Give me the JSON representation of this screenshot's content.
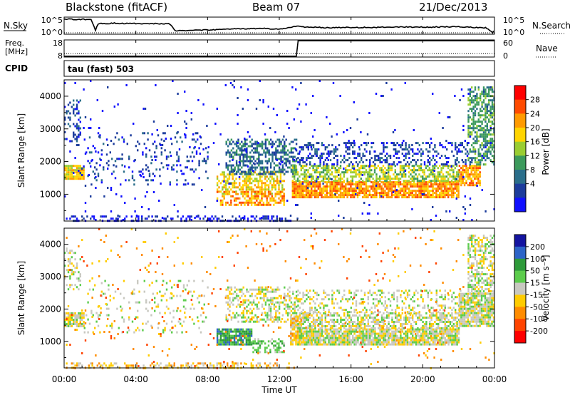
{
  "header": {
    "station": "Blackstone (fitACF)",
    "beam": "Beam 07",
    "date": "21/Dec/2013"
  },
  "noise_panel": {
    "left_label": "N.Sky",
    "left_ticks": [
      "10^5",
      "10^0"
    ],
    "right_ticks": [
      "10^5",
      "10^0"
    ],
    "right_label": "N.Search"
  },
  "freq_panel": {
    "left_label_1": "Freq.",
    "left_label_2": "[MHz]",
    "left_ticks": [
      "18",
      "8"
    ],
    "right_ticks": [
      "60",
      "0"
    ],
    "right_label": "Nave",
    "cpid_label": "CPID",
    "mode": "tau (fast) 503"
  },
  "x_axis": {
    "label": "Time UT",
    "ticks": [
      "00:00",
      "04:00",
      "08:00",
      "12:00",
      "16:00",
      "20:00",
      "00:00"
    ]
  },
  "power_colorbar": {
    "label": "Power [dB]",
    "ticks": [
      "28",
      "24",
      "20",
      "16",
      "12",
      "8",
      "4"
    ],
    "colors": [
      "#ff0000",
      "#ff4a00",
      "#ff9a00",
      "#ffd400",
      "#9acd32",
      "#3c9a5c",
      "#2a6e8a",
      "#1c3c9c",
      "#1010ff"
    ]
  },
  "velocity_colorbar": {
    "label": "Velocity [m s⁻¹]",
    "ticks": [
      "200",
      "100",
      "50",
      "15",
      "-15",
      "-50",
      "-100",
      "-200"
    ],
    "colors": [
      "#1414a0",
      "#2d64c8",
      "#2e9a3a",
      "#5ccc4c",
      "#c8c8c0",
      "#ffcc00",
      "#ff8c00",
      "#ff4400",
      "#ff0000"
    ]
  },
  "chart_data": [
    {
      "type": "line",
      "panel": "noise",
      "x_unit": "hours UT",
      "xlim": [
        0,
        24
      ],
      "series": [
        {
          "name": "N.Sky",
          "x": [
            0,
            0.1,
            1.5,
            1.75,
            1.9,
            2.8,
            3.5,
            4.5,
            5.5,
            5.9,
            6.2,
            8,
            10,
            11,
            12,
            12.6,
            12.9,
            13.5,
            15,
            17,
            19,
            21,
            22,
            23,
            23.5,
            23.9,
            24
          ],
          "y_frac": [
            0.88,
            0.88,
            0.86,
            0.25,
            0.62,
            0.64,
            0.63,
            0.61,
            0.62,
            0.6,
            0.2,
            0.25,
            0.32,
            0.34,
            0.3,
            0.4,
            0.47,
            0.42,
            0.38,
            0.4,
            0.42,
            0.42,
            0.44,
            0.4,
            0.38,
            0.1,
            0.35
          ]
        }
      ]
    },
    {
      "type": "line",
      "panel": "frequency",
      "x_unit": "hours UT",
      "series": [
        {
          "name": "Freq.",
          "x": [
            0,
            12.95,
            13.05,
            24
          ],
          "y": [
            8.5,
            8.5,
            17.5,
            17.5
          ]
        },
        {
          "name": "Nave",
          "x": [
            0,
            24
          ],
          "y": [
            12,
            12
          ]
        }
      ]
    },
    {
      "type": "heatmap",
      "panel": "power",
      "x_unit": "hours UT",
      "y_unit": "km",
      "xlim": [
        0,
        24
      ],
      "ylim": [
        180,
        4500
      ],
      "yticks": [
        1000,
        2000,
        3000,
        4000
      ],
      "ylabel": "Slant Range [km]",
      "regions": [
        {
          "x": [
            0,
            1.1
          ],
          "y": [
            1500,
            1900
          ],
          "level": 5,
          "density": 0.9
        },
        {
          "x": [
            0,
            0.9
          ],
          "y": [
            2600,
            3900
          ],
          "level": 1,
          "density": 0.25
        },
        {
          "x": [
            1,
            8
          ],
          "y": [
            1300,
            2900
          ],
          "level": 1,
          "density": 0.12
        },
        {
          "x": [
            8.5,
            12.3
          ],
          "y": [
            1000,
            1700
          ],
          "level": 5,
          "density": 0.5
        },
        {
          "x": [
            8.5,
            12.3
          ],
          "y": [
            700,
            1100
          ],
          "level": 6,
          "density": 0.55
        },
        {
          "x": [
            9,
            13
          ],
          "y": [
            1600,
            2700
          ],
          "level": 2,
          "density": 0.5
        },
        {
          "x": [
            12.7,
            22
          ],
          "y": [
            900,
            1400
          ],
          "level": 6,
          "density": 0.85
        },
        {
          "x": [
            12.7,
            22
          ],
          "y": [
            1400,
            1900
          ],
          "level": 4,
          "density": 0.6
        },
        {
          "x": [
            13,
            22.5
          ],
          "y": [
            1900,
            2600
          ],
          "level": 1,
          "density": 0.3
        },
        {
          "x": [
            22,
            23.2
          ],
          "y": [
            1300,
            1900
          ],
          "level": 6,
          "density": 0.8
        },
        {
          "x": [
            22.5,
            24
          ],
          "y": [
            1900,
            4300
          ],
          "level": 3,
          "density": 0.55
        },
        {
          "x": [
            0,
            13
          ],
          "y": [
            200,
            350
          ],
          "level": 0,
          "density": 0.35
        },
        {
          "x": [
            0,
            24
          ],
          "y": [
            200,
            4500
          ],
          "level": 0,
          "density": 0.02
        }
      ]
    },
    {
      "type": "heatmap",
      "panel": "velocity",
      "x_unit": "hours UT",
      "y_unit": "km",
      "xlim": [
        0,
        24
      ],
      "ylim": [
        180,
        4500
      ],
      "yticks": [
        1000,
        2000,
        3000,
        4000
      ],
      "ylabel": "Slant Range [km]",
      "regions": [
        {
          "x": [
            0,
            1.1
          ],
          "y": [
            1500,
            1900
          ],
          "level": 4,
          "density": 0.9
        },
        {
          "x": [
            0,
            0.9
          ],
          "y": [
            2600,
            3900
          ],
          "level": 4,
          "density": 0.3
        },
        {
          "x": [
            1,
            8
          ],
          "y": [
            1300,
            2900
          ],
          "level": 4,
          "density": 0.1
        },
        {
          "x": [
            8.5,
            10.5
          ],
          "y": [
            900,
            1400
          ],
          "level": 6,
          "density": 0.85
        },
        {
          "x": [
            10.5,
            12.3
          ],
          "y": [
            700,
            1100
          ],
          "level": 5,
          "density": 0.45
        },
        {
          "x": [
            9,
            13
          ],
          "y": [
            1600,
            2700
          ],
          "level": 4,
          "density": 0.45
        },
        {
          "x": [
            12.6,
            13.2
          ],
          "y": [
            900,
            1800
          ],
          "level": 3,
          "density": 0.8
        },
        {
          "x": [
            13,
            22
          ],
          "y": [
            900,
            1400
          ],
          "level": 4,
          "density": 0.85
        },
        {
          "x": [
            13,
            22
          ],
          "y": [
            1400,
            1900
          ],
          "level": 4,
          "density": 0.55
        },
        {
          "x": [
            13,
            22.5
          ],
          "y": [
            1900,
            2600
          ],
          "level": 4,
          "density": 0.25
        },
        {
          "x": [
            22,
            24
          ],
          "y": [
            1500,
            2500
          ],
          "level": 4,
          "density": 0.85
        },
        {
          "x": [
            22.5,
            24
          ],
          "y": [
            2500,
            4300
          ],
          "level": 4,
          "density": 0.55
        },
        {
          "x": [
            0,
            13
          ],
          "y": [
            200,
            350
          ],
          "level": 3,
          "density": 0.35
        },
        {
          "x": [
            0,
            24
          ],
          "y": [
            200,
            4500
          ],
          "level": 2,
          "density": 0.02
        }
      ]
    }
  ]
}
